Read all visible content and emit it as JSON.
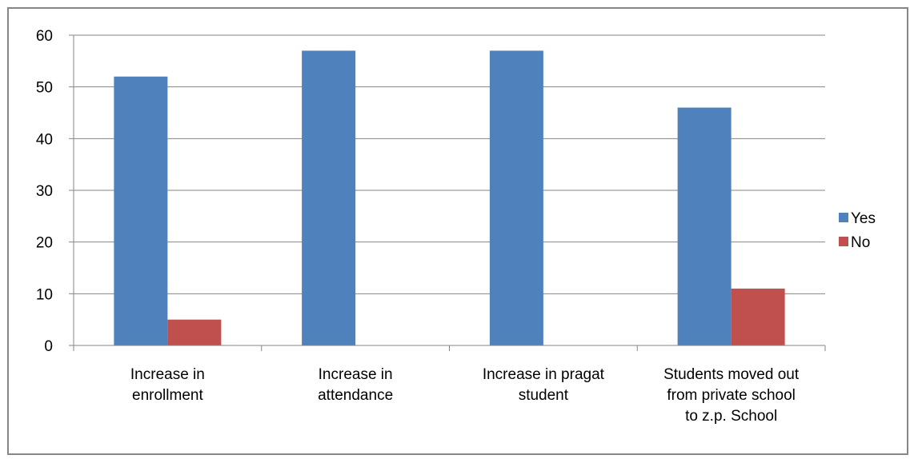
{
  "chart_data": {
    "type": "bar",
    "categories": [
      [
        "Increase in",
        "enrollment"
      ],
      [
        "Increase in",
        "attendance"
      ],
      [
        "Increase in pragat",
        "student"
      ],
      [
        "Students moved out",
        "from private school",
        "to z.p. School"
      ]
    ],
    "series": [
      {
        "name": "Yes",
        "color": "#4f81bd",
        "values": [
          52,
          57,
          57,
          46
        ]
      },
      {
        "name": "No",
        "color": "#c0504d",
        "values": [
          5,
          0,
          0,
          11
        ]
      }
    ],
    "ylim": [
      0,
      60
    ],
    "yticks": [
      0,
      10,
      20,
      30,
      40,
      50,
      60
    ],
    "grid": true,
    "legend_position": "right",
    "title": "",
    "xlabel": "",
    "ylabel": ""
  }
}
